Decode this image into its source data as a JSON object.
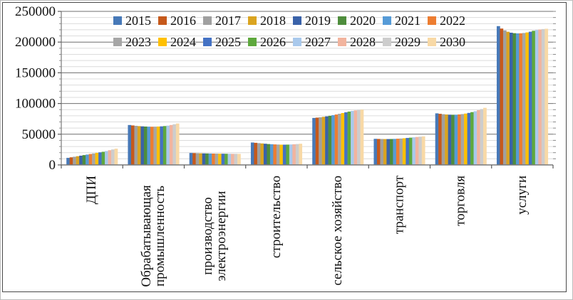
{
  "chart_data": {
    "type": "bar",
    "title": "",
    "xlabel": "",
    "ylabel": "",
    "ylim": [
      0,
      250000
    ],
    "y_major_step": 50000,
    "y_minor_step": 10000,
    "y_tick_labels": [
      "0",
      "50000",
      "100000",
      "150000",
      "200000",
      "250000"
    ],
    "grid": true,
    "legend_position": "top, two rows of 8",
    "categories": [
      "ДПИ",
      "Обрабатывающая промышленность",
      "производство электроэнергии",
      "строительство",
      "сельское хозяйство",
      "транспорт",
      "торговля",
      "услуги"
    ],
    "category_lines": [
      [
        "ДПИ"
      ],
      [
        "Обрабатывающая",
        "промышленность"
      ],
      [
        "производство",
        "электроэнергии"
      ],
      [
        "строительство"
      ],
      [
        "сельское хозяйство"
      ],
      [
        "транспорт"
      ],
      [
        "торговля"
      ],
      [
        "услуги"
      ]
    ],
    "series": [
      {
        "name": "2015",
        "color": "#4779B8",
        "values": [
          11500,
          65000,
          19500,
          36500,
          76500,
          42500,
          84000,
          226000
        ]
      },
      {
        "name": "2016",
        "color": "#C6591B",
        "values": [
          12400,
          64300,
          19300,
          36000,
          77000,
          42300,
          83200,
          222000
        ]
      },
      {
        "name": "2017",
        "color": "#A0A0A0",
        "values": [
          13300,
          63700,
          19100,
          35500,
          77600,
          42200,
          82600,
          219000
        ]
      },
      {
        "name": "2018",
        "color": "#DAA420",
        "values": [
          14200,
          63200,
          18900,
          35000,
          78300,
          42100,
          82100,
          216800
        ]
      },
      {
        "name": "2019",
        "color": "#3A62A9",
        "values": [
          15100,
          62800,
          18800,
          34500,
          79100,
          42100,
          81800,
          215300
        ]
      },
      {
        "name": "2020",
        "color": "#4E8D3C",
        "values": [
          16000,
          62500,
          18700,
          34000,
          80000,
          42200,
          81700,
          214500
        ]
      },
      {
        "name": "2021",
        "color": "#569BD7",
        "values": [
          16900,
          62300,
          18600,
          33700,
          81000,
          42400,
          81800,
          214200
        ]
      },
      {
        "name": "2022",
        "color": "#ED7D31",
        "values": [
          17800,
          62200,
          18500,
          33400,
          82100,
          42700,
          82200,
          214300
        ]
      },
      {
        "name": "2023",
        "color": "#A6A6A6",
        "values": [
          18700,
          62300,
          18400,
          33200,
          83300,
          43000,
          82800,
          214800
        ]
      },
      {
        "name": "2024",
        "color": "#FFC000",
        "values": [
          19600,
          62500,
          18300,
          33000,
          84500,
          43400,
          83600,
          215700
        ]
      },
      {
        "name": "2025",
        "color": "#4472C4",
        "values": [
          20500,
          62800,
          18300,
          33000,
          85700,
          43900,
          84700,
          216900
        ]
      },
      {
        "name": "2026",
        "color": "#5EA83D",
        "values": [
          21400,
          63300,
          18200,
          33100,
          86900,
          44400,
          86000,
          218400
        ]
      },
      {
        "name": "2027",
        "color": "#A9C9EC",
        "values": [
          22600,
          64000,
          18200,
          33300,
          88000,
          45000,
          87500,
          219600
        ]
      },
      {
        "name": "2028",
        "color": "#F2B49E",
        "values": [
          24000,
          65000,
          18100,
          33600,
          88800,
          45500,
          89200,
          220500
        ]
      },
      {
        "name": "2029",
        "color": "#CDCDCD",
        "values": [
          25200,
          66200,
          18100,
          34000,
          89400,
          46000,
          91000,
          221200
        ]
      },
      {
        "name": "2030",
        "color": "#F8D9A6",
        "values": [
          26500,
          67500,
          18000,
          34500,
          90000,
          46500,
          93000,
          221700
        ]
      }
    ]
  }
}
